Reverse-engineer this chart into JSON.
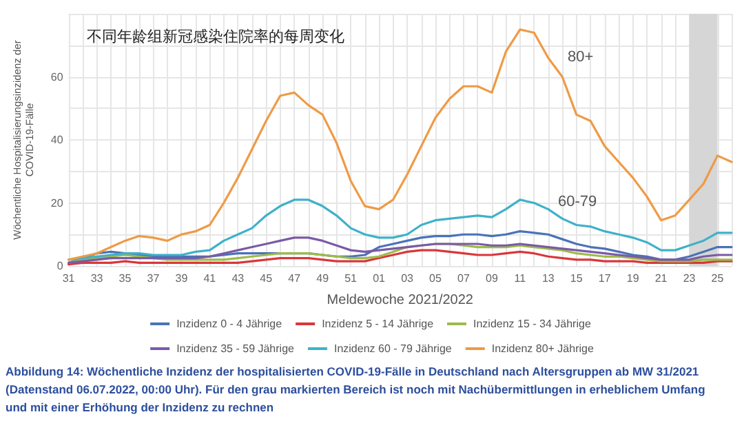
{
  "chart_data": {
    "type": "line",
    "title": "不同年龄组新冠感染住院率的每周变化",
    "xlabel": "Meldewoche 2021/2022",
    "ylabel": "Wöchentliche Hospitalisierungsinzidenz der\nCOVID-19-Fälle",
    "categories": [
      "31",
      null,
      "33",
      null,
      "35",
      null,
      "37",
      null,
      "39",
      null,
      "41",
      null,
      "43",
      null,
      "45",
      null,
      "47",
      null,
      "49",
      null,
      "51",
      null,
      "01",
      null,
      "03",
      null,
      "05",
      null,
      "07",
      null,
      "09",
      null,
      "11",
      null,
      "13",
      null,
      "15",
      null,
      "17",
      null,
      "19",
      null,
      "21",
      null,
      "23",
      null,
      "25",
      null
    ],
    "series": [
      {
        "name": "Inzidenz 0 - 4 Jährige",
        "color": "#4a72b8",
        "values": [
          1,
          2.5,
          4,
          4.5,
          4,
          3.5,
          3,
          3,
          3,
          3,
          3,
          3.5,
          4,
          4,
          4,
          4,
          4,
          4,
          3.5,
          3,
          3,
          3.5,
          6,
          7,
          8,
          9,
          9.5,
          9.5,
          10,
          10,
          9.5,
          10,
          11,
          10.5,
          10,
          8.5,
          7,
          6,
          5.5,
          4.5,
          3.5,
          3,
          2,
          2,
          3,
          4.5,
          6,
          6
        ]
      },
      {
        "name": "Inzidenz 5 - 14 Jährige",
        "color": "#d9373a",
        "values": [
          0.5,
          1,
          1,
          1,
          1.5,
          1,
          1,
          1,
          1,
          1,
          1,
          1,
          1,
          1.5,
          2,
          2.5,
          2.5,
          2.5,
          2,
          1.5,
          1.5,
          1.5,
          2.5,
          3.5,
          4.5,
          5,
          5,
          4.5,
          4,
          3.5,
          3.5,
          4,
          4.5,
          4,
          3,
          2.5,
          2,
          2,
          1.5,
          1.5,
          1.5,
          1,
          1,
          1,
          1,
          1,
          1.5,
          1.5
        ]
      },
      {
        "name": "Inzidenz 15 - 34 Jährige",
        "color": "#9dbb4a",
        "values": [
          1,
          2,
          2.5,
          3,
          3.5,
          3,
          2.5,
          2,
          2,
          2,
          2,
          2,
          2.5,
          3,
          3.5,
          4,
          4,
          4,
          3.5,
          3,
          2.5,
          2.5,
          3,
          4.5,
          6,
          6.5,
          7,
          7,
          6.5,
          6,
          6,
          6,
          6.5,
          6,
          5.5,
          5,
          4,
          3.5,
          3,
          3,
          2.5,
          2,
          1.5,
          1.5,
          1.5,
          2,
          2,
          2
        ]
      },
      {
        "name": "Inzidenz 35 - 59 Jährige",
        "color": "#7a5aa6",
        "values": [
          1,
          1.5,
          2,
          2.5,
          2.5,
          2.5,
          2.5,
          2.5,
          2.5,
          2.5,
          3,
          4,
          5,
          6,
          7,
          8,
          9,
          9,
          8,
          6.5,
          5,
          4.5,
          5,
          5.5,
          6,
          6.5,
          7,
          7,
          7,
          7,
          6.5,
          6.5,
          7,
          6.5,
          6,
          5.5,
          5,
          4.5,
          4,
          3.5,
          3,
          2.5,
          2,
          2,
          2,
          3,
          3.5,
          3.5
        ]
      },
      {
        "name": "Inzidenz 60 - 79 Jährige",
        "color": "#3fb1c9",
        "values": [
          2,
          2.5,
          3,
          3.5,
          4,
          4,
          3.5,
          3.5,
          3.5,
          4.5,
          5,
          8,
          10,
          12,
          16,
          19,
          21,
          21,
          19,
          16,
          12,
          10,
          9,
          9,
          10,
          13,
          14.5,
          15,
          15.5,
          16,
          15.5,
          18,
          21,
          20,
          18,
          15,
          13,
          12.5,
          11,
          10,
          9,
          7.5,
          5,
          5,
          6.5,
          8,
          10.5,
          10.5
        ]
      },
      {
        "name": "Inzidenz 80+ Jährige",
        "color": "#ef9a45",
        "values": [
          2,
          3,
          4,
          6,
          8,
          9.5,
          9,
          8,
          10,
          11,
          13,
          20,
          28,
          37,
          46,
          54,
          55,
          51,
          48,
          39,
          27,
          19,
          18,
          21,
          29,
          38,
          47,
          53,
          57,
          57,
          55,
          68,
          75,
          74,
          66,
          60,
          48,
          46,
          38,
          33,
          28,
          22,
          14.5,
          16,
          21,
          26,
          35,
          33
        ]
      }
    ],
    "ylim": [
      0,
      80
    ],
    "yticks": [
      0,
      {
        "value": 10,
        "label": null
      },
      20,
      {
        "value": 30,
        "label": null
      },
      40,
      {
        "value": 50,
        "label": null
      },
      60,
      {
        "value": 70,
        "label": null
      },
      {
        "value": 80,
        "label": null
      }
    ],
    "bands": [
      {
        "axis": "x",
        "from": "23",
        "to": "25",
        "color": "#d6d6d6"
      }
    ],
    "annotations": [
      "80+",
      "60-79",
      "Abbildung 14: Wöchentliche Inzidenz der hospitalisierten COVID-19-Fälle in Deutschland nach Altersgruppen ab MW 31/2021 (Datenstand 06.07.2022, 00:00 Uhr). Für den grau markierten Bereich ist noch mit Nachübermittlungen in erheblichem Umfang und mit einer Erhöhung der Inzidenz zu rechnen"
    ],
    "grid": true,
    "legend": "bottom",
    "marker": "none",
    "line_style": "solid"
  }
}
